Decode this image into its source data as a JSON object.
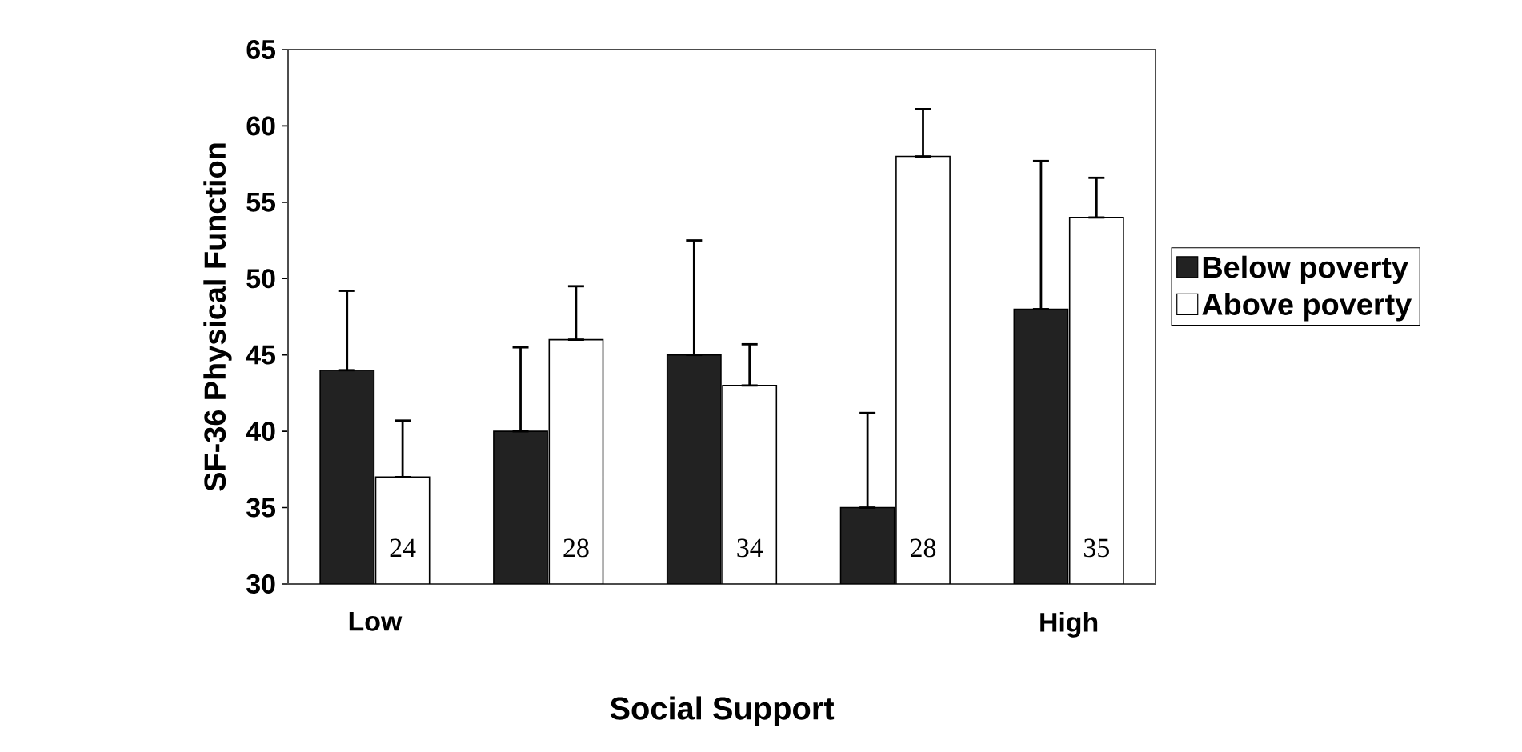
{
  "chart_data": {
    "type": "bar",
    "xlabel": "Social Support",
    "ylabel": "SF-36 Physical Function",
    "categories": [
      "Low",
      null,
      null,
      null,
      "High"
    ],
    "series": [
      {
        "name": "Below poverty",
        "color": "#222222",
        "values": [
          44,
          40,
          45,
          35,
          48
        ],
        "errors": [
          [
            44,
            49.2
          ],
          [
            40,
            45.5
          ],
          [
            45,
            52.5
          ],
          [
            35,
            41.2
          ],
          [
            48,
            57.7
          ]
        ]
      },
      {
        "name": "Above poverty",
        "color": "#ffffff",
        "values": [
          37,
          46,
          43,
          58,
          54
        ],
        "errors": [
          [
            37,
            40.7
          ],
          [
            46,
            49.5
          ],
          [
            43,
            45.7
          ],
          [
            58,
            61.1
          ],
          [
            54,
            56.6
          ]
        ]
      }
    ],
    "annotations": [
      "24",
      "28",
      "34",
      "28",
      "35"
    ],
    "ylim": [
      30,
      65
    ],
    "yticks": [
      30,
      35,
      40,
      45,
      50,
      55,
      60,
      65
    ],
    "legend": "right"
  }
}
